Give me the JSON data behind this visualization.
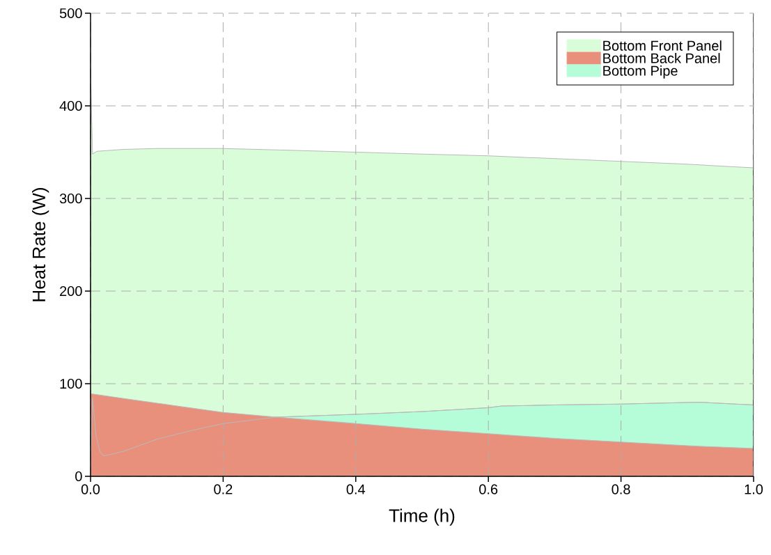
{
  "chart_data": {
    "type": "area",
    "xlabel": "Time (h)",
    "ylabel": "Heat Rate (W)",
    "xlim": [
      0,
      1
    ],
    "ylim": [
      0,
      500
    ],
    "xticks": [
      {
        "value": 0,
        "label": "0.0"
      },
      0.2,
      0.4,
      0.6,
      0.8,
      {
        "value": 1,
        "label": "1.0"
      }
    ],
    "yticks": [
      0,
      100,
      200,
      300,
      400,
      500
    ],
    "grid": true,
    "legend": "top right",
    "series": [
      {
        "name": "Bottom Front Panel",
        "color": "#d9fdd9",
        "x": [
          0,
          0.003,
          0.01,
          0.05,
          0.1,
          0.2,
          0.3,
          0.4,
          0.5,
          0.6,
          0.7,
          0.8,
          0.9,
          1.0
        ],
        "values": [
          440,
          348,
          351,
          353,
          354,
          354,
          352,
          350,
          348,
          346,
          343,
          340,
          337,
          333
        ]
      },
      {
        "name": "Bottom Back Panel",
        "color": "#e8907c",
        "x": [
          0,
          0.003,
          0.05,
          0.1,
          0.2,
          0.28,
          0.4,
          0.5,
          0.6,
          0.7,
          0.8,
          0.9,
          1.0
        ],
        "values": [
          89,
          89,
          84,
          79,
          69,
          64,
          57,
          51,
          46,
          41,
          37,
          33,
          30
        ]
      },
      {
        "name": "Bottom Pipe",
        "color": "#b5fcd9",
        "x": [
          0,
          0.003,
          0.008,
          0.014,
          0.02,
          0.05,
          0.1,
          0.15,
          0.2,
          0.28,
          0.4,
          0.5,
          0.6,
          0.62,
          0.7,
          0.8,
          0.92,
          1.0
        ],
        "values": [
          0,
          85,
          45,
          27,
          22,
          27,
          40,
          49,
          57,
          64,
          67,
          70,
          74,
          76,
          77,
          78,
          80,
          77
        ]
      }
    ]
  }
}
